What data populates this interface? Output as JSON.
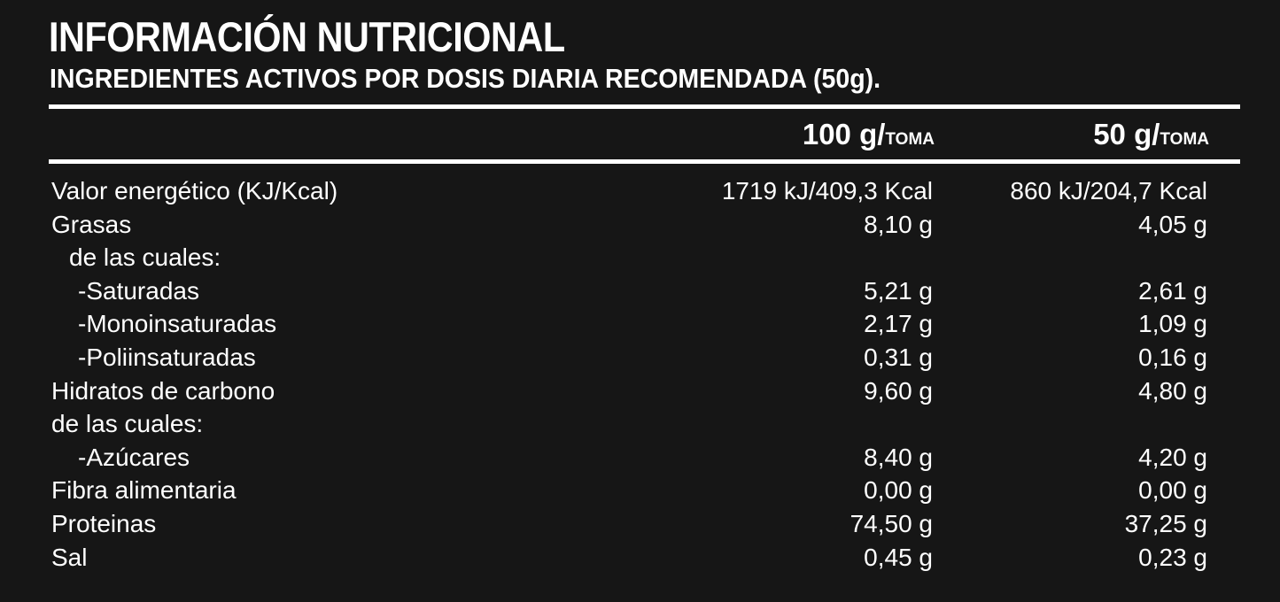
{
  "title": "INFORMACIÓN NUTRICIONAL",
  "subtitle": "INGREDIENTES ACTIVOS POR DOSIS DIARIA RECOMENDADA (50g).",
  "columns": [
    {
      "amount": "100 g/",
      "unit": "TOMA"
    },
    {
      "amount": "50 g/",
      "unit": "TOMA"
    }
  ],
  "rows": [
    {
      "label": "Valor energético (KJ/Kcal)",
      "indent": 0,
      "v100": "1719 kJ/409,3 Kcal",
      "v50": "860 kJ/204,7 Kcal"
    },
    {
      "label": "Grasas",
      "indent": 0,
      "v100": "8,10 g",
      "v50": "4,05 g"
    },
    {
      "label": "de las cuales:",
      "indent": 1,
      "v100": "",
      "v50": ""
    },
    {
      "label": "-Saturadas",
      "indent": 2,
      "v100": "5,21 g",
      "v50": "2,61 g"
    },
    {
      "label": "-Monoinsaturadas",
      "indent": 2,
      "v100": "2,17 g",
      "v50": "1,09 g"
    },
    {
      "label": "-Poliinsaturadas",
      "indent": 2,
      "v100": "0,31 g",
      "v50": "0,16 g"
    },
    {
      "label": "Hidratos de carbono",
      "indent": 0,
      "v100": "9,60 g",
      "v50": "4,80 g"
    },
    {
      "label": "de las cuales:",
      "indent": 0,
      "v100": "",
      "v50": ""
    },
    {
      "label": "-Azúcares",
      "indent": 2,
      "v100": "8,40 g",
      "v50": "4,20 g"
    },
    {
      "label": "Fibra alimentaria",
      "indent": 0,
      "v100": "0,00 g",
      "v50": "0,00 g"
    },
    {
      "label": "Proteinas",
      "indent": 0,
      "v100": "74,50 g",
      "v50": "37,25 g"
    },
    {
      "label": "Sal",
      "indent": 0,
      "v100": "0,45 g",
      "v50": "0,23 g"
    }
  ]
}
